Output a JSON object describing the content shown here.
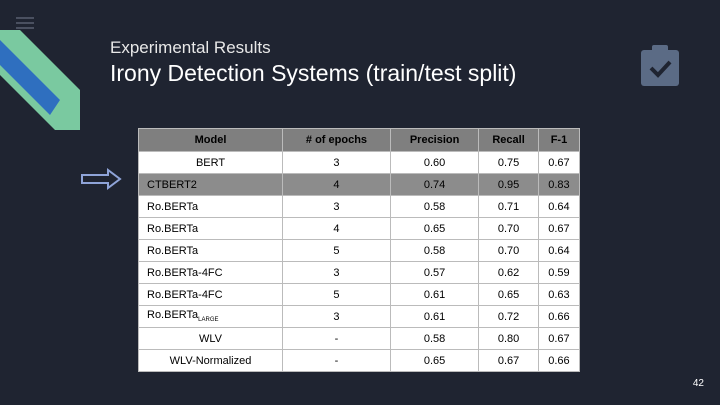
{
  "header": {
    "subtitle": "Experimental Results",
    "title": "Irony Detection Systems (train/test split)"
  },
  "table": {
    "columns": [
      "Model",
      "# of epochs",
      "Precision",
      "Recall",
      "F-1"
    ],
    "rows": [
      [
        "BERT",
        "3",
        "0.60",
        "0.75",
        "0.67"
      ],
      [
        "CTBERT2",
        "4",
        "0.74",
        "0.95",
        "0.83"
      ],
      [
        "Ro.BERTa",
        "3",
        "0.58",
        "0.71",
        "0.64"
      ],
      [
        "Ro.BERTa",
        "4",
        "0.65",
        "0.70",
        "0.67"
      ],
      [
        "Ro.BERTa",
        "5",
        "0.58",
        "0.70",
        "0.64"
      ],
      [
        "Ro.BERTa-4FC",
        "3",
        "0.57",
        "0.62",
        "0.59"
      ],
      [
        "Ro.BERTa-4FC",
        "5",
        "0.61",
        "0.65",
        "0.63"
      ],
      [
        {
          "text": "Ro.BERTa",
          "sub": "LARGE"
        },
        "3",
        "0.61",
        "0.72",
        "0.66"
      ],
      [
        "WLV",
        "-",
        "0.58",
        "0.80",
        "0.67"
      ],
      [
        "WLV-Normalized",
        "-",
        "0.65",
        "0.67",
        "0.66"
      ]
    ]
  },
  "footer": {
    "page": "42"
  }
}
